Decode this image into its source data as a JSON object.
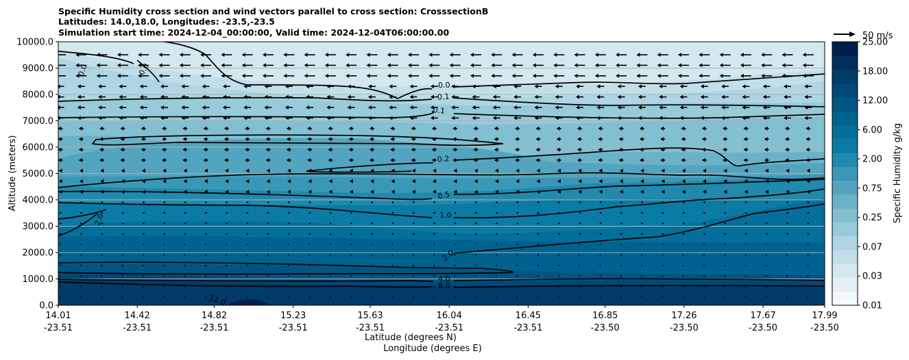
{
  "title_lines": [
    "Specific Humidity cross section and wind vectors parallel to cross section: CrosssectionB",
    "Latitudes: 14.0,18.0, Longitudes: -23.5,-23.5",
    "Simulation start time: 2024-12-04_00:00:00, Valid time: 2024-12-04T06:00:00.00"
  ],
  "chart_data": {
    "type": "heatmap",
    "title": "Specific Humidity cross section and wind vectors parallel to cross section: CrosssectionB",
    "xlabel_lines": [
      "Latitude (degrees N)",
      "Longitude (degrees E)"
    ],
    "ylabel": "Altitude (meters)",
    "ylim": [
      0,
      10000
    ],
    "yticks": [
      "0.0",
      "1000.0",
      "2000.0",
      "3000.0",
      "4000.0",
      "5000.0",
      "6000.0",
      "7000.0",
      "8000.0",
      "9000.0",
      "10000.0"
    ],
    "xticks": [
      {
        "lat": "14.01",
        "lon": "-23.51"
      },
      {
        "lat": "14.42",
        "lon": "-23.51"
      },
      {
        "lat": "14.82",
        "lon": "-23.51"
      },
      {
        "lat": "15.23",
        "lon": "-23.51"
      },
      {
        "lat": "15.63",
        "lon": "-23.51"
      },
      {
        "lat": "16.04",
        "lon": "-23.51"
      },
      {
        "lat": "16.45",
        "lon": "-23.51"
      },
      {
        "lat": "16.85",
        "lon": "-23.50"
      },
      {
        "lat": "17.26",
        "lon": "-23.50"
      },
      {
        "lat": "17.67",
        "lon": "-23.50"
      },
      {
        "lat": "17.99",
        "lon": "-23.50"
      }
    ],
    "grid": "horizontal",
    "colorbar": {
      "label": "Specific Humidity g/kg",
      "ticks": [
        "0.01",
        "0.03",
        "0.07",
        "0.25",
        "0.75",
        "2.00",
        "6.00",
        "12.00",
        "18.00",
        "25.00"
      ],
      "colors": [
        "#f3f9fb",
        "#e3f0f5",
        "#d3e8ef",
        "#c1dfe9",
        "#aed5e2",
        "#98cad9",
        "#82bfd1",
        "#6bb2c8",
        "#53a5bf",
        "#3a98b7",
        "#208aae",
        "#0a7ba4",
        "#046f9b",
        "#00628f",
        "#005583",
        "#004877",
        "#003b6a",
        "#002e5c",
        "#001f4a"
      ]
    },
    "quiver_key": "50 m/s",
    "contour_labels": [
      "0.0",
      "0.0",
      "0.0",
      "0.1",
      "0.1",
      "0.2",
      "0.5",
      "1.0",
      "2.0",
      "2.0",
      "4.0",
      "8.0",
      "12.0"
    ]
  }
}
